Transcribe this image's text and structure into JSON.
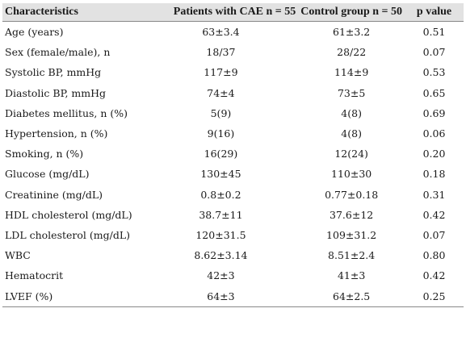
{
  "table": {
    "header": [
      "Characteristics",
      "Patients with CAE n = 55",
      "Control group n = 50",
      "p value"
    ],
    "rows": [
      [
        "Age (years)",
        "63±3.4",
        "61±3.2",
        "0.51"
      ],
      [
        "Sex (female/male), n",
        "18/37",
        "28/22",
        "0.07"
      ],
      [
        "Systolic BP, mmHg",
        "117±9",
        "114±9",
        "0.53"
      ],
      [
        "Diastolic BP, mmHg",
        "74±4",
        "73±5",
        "0.65"
      ],
      [
        "Diabetes mellitus, n (%)",
        "5(9)",
        "4(8)",
        "0.69"
      ],
      [
        "Hypertension, n (%)",
        "9(16)",
        "4(8)",
        "0.06"
      ],
      [
        "Smoking, n (%)",
        "16(29)",
        "12(24)",
        "0.20"
      ],
      [
        "Glucose (mg/dL)",
        "130±45",
        "110±30",
        "0.18"
      ],
      [
        "Creatinine (mg/dL)",
        "0.8±0.2",
        "0.77±0.18",
        "0.31"
      ],
      [
        "HDL cholesterol (mg/dL)",
        "38.7±11",
        "37.6±12",
        "0.42"
      ],
      [
        "LDL cholesterol (mg/dL)",
        "120±31.5",
        "109±31.2",
        "0.07"
      ],
      [
        "WBC",
        "8.62±3.14",
        "8.51±2.4",
        "0.80"
      ],
      [
        "Hematocrit",
        "42±3",
        "41±3",
        "0.42"
      ],
      [
        "LVEF (%)",
        "64±3",
        "64±2.5",
        "0.25"
      ]
    ]
  }
}
